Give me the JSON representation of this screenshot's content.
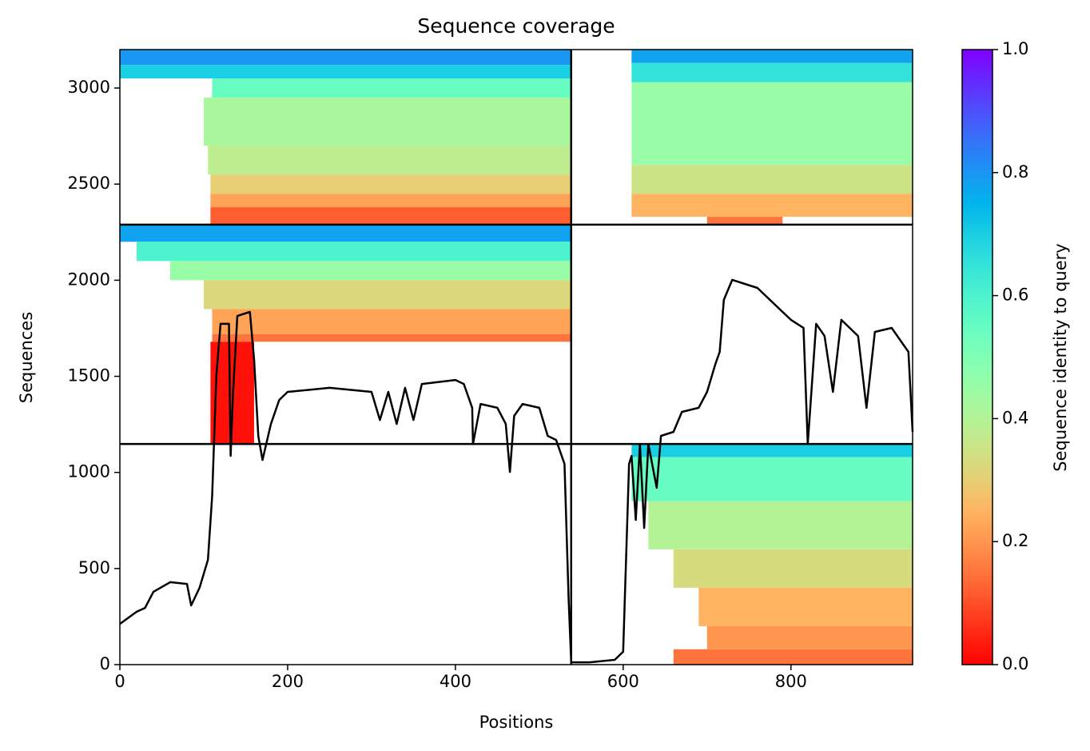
{
  "chart_data": {
    "type": "coverage",
    "title": "Sequence coverage",
    "x_label": "Positions",
    "y_label": "Sequences",
    "xlim": [
      0,
      945
    ],
    "xticks": [
      0,
      200,
      400,
      600,
      800
    ],
    "ylim": [
      0,
      3200
    ],
    "yticks": [
      0,
      500,
      1000,
      1500,
      2000,
      2500,
      3000
    ],
    "block_edges": {
      "x": [
        538
      ],
      "y": [
        1148,
        2289
      ]
    },
    "bands": [
      {
        "x0": 0,
        "x1": 538,
        "y0": 3120,
        "y1": 3200,
        "identity": 0.8
      },
      {
        "x0": 0,
        "x1": 538,
        "y0": 3050,
        "y1": 3120,
        "identity": 0.7
      },
      {
        "x0": 110,
        "x1": 538,
        "y0": 2950,
        "y1": 3050,
        "identity": 0.55
      },
      {
        "x0": 100,
        "x1": 538,
        "y0": 2700,
        "y1": 2950,
        "identity": 0.42
      },
      {
        "x0": 105,
        "x1": 538,
        "y0": 2550,
        "y1": 2700,
        "identity": 0.38
      },
      {
        "x0": 108,
        "x1": 538,
        "y0": 2450,
        "y1": 2550,
        "identity": 0.3
      },
      {
        "x0": 108,
        "x1": 538,
        "y0": 2380,
        "y1": 2450,
        "identity": 0.22
      },
      {
        "x0": 108,
        "x1": 538,
        "y0": 2289,
        "y1": 2380,
        "identity": 0.12
      },
      {
        "x0": 610,
        "x1": 945,
        "y0": 3130,
        "y1": 3200,
        "identity": 0.78
      },
      {
        "x0": 610,
        "x1": 945,
        "y0": 3030,
        "y1": 3130,
        "identity": 0.65
      },
      {
        "x0": 610,
        "x1": 945,
        "y0": 2600,
        "y1": 3030,
        "identity": 0.45
      },
      {
        "x0": 610,
        "x1": 945,
        "y0": 2450,
        "y1": 2600,
        "identity": 0.35
      },
      {
        "x0": 610,
        "x1": 945,
        "y0": 2330,
        "y1": 2450,
        "identity": 0.25
      },
      {
        "x0": 700,
        "x1": 790,
        "y0": 2289,
        "y1": 2330,
        "identity": 0.15
      },
      {
        "x0": 0,
        "x1": 538,
        "y0": 2200,
        "y1": 2289,
        "identity": 0.78
      },
      {
        "x0": 20,
        "x1": 538,
        "y0": 2100,
        "y1": 2200,
        "identity": 0.6
      },
      {
        "x0": 60,
        "x1": 538,
        "y0": 2000,
        "y1": 2100,
        "identity": 0.45
      },
      {
        "x0": 100,
        "x1": 538,
        "y0": 1850,
        "y1": 2000,
        "identity": 0.32
      },
      {
        "x0": 110,
        "x1": 538,
        "y0": 1720,
        "y1": 1850,
        "identity": 0.22
      },
      {
        "x0": 110,
        "x1": 538,
        "y0": 1680,
        "y1": 1720,
        "identity": 0.15
      },
      {
        "x0": 108,
        "x1": 160,
        "y0": 1148,
        "y1": 1680,
        "identity": 0.02
      },
      {
        "x0": 610,
        "x1": 945,
        "y0": 1080,
        "y1": 1148,
        "identity": 0.7
      },
      {
        "x0": 610,
        "x1": 945,
        "y0": 850,
        "y1": 1080,
        "identity": 0.55
      },
      {
        "x0": 630,
        "x1": 945,
        "y0": 600,
        "y1": 850,
        "identity": 0.4
      },
      {
        "x0": 660,
        "x1": 945,
        "y0": 400,
        "y1": 600,
        "identity": 0.33
      },
      {
        "x0": 690,
        "x1": 945,
        "y0": 200,
        "y1": 400,
        "identity": 0.25
      },
      {
        "x0": 700,
        "x1": 945,
        "y0": 80,
        "y1": 200,
        "identity": 0.2
      },
      {
        "x0": 660,
        "x1": 945,
        "y0": 0,
        "y1": 80,
        "identity": 0.15
      }
    ],
    "coverage": {
      "color": "#000000",
      "x": [
        0,
        20,
        30,
        40,
        60,
        80,
        85,
        95,
        105,
        110,
        115,
        120,
        130,
        132,
        135,
        140,
        155,
        160,
        165,
        170,
        180,
        190,
        200,
        250,
        300,
        310,
        320,
        330,
        340,
        350,
        360,
        400,
        410,
        420,
        421,
        430,
        450,
        460,
        465,
        470,
        480,
        500,
        510,
        520,
        530,
        535,
        538,
        560,
        590,
        600,
        607,
        610,
        615,
        620,
        625,
        630,
        640,
        645,
        660,
        670,
        690,
        700,
        710,
        715,
        720,
        730,
        760,
        790,
        800,
        815,
        820,
        830,
        840,
        850,
        860,
        880,
        890,
        900,
        920,
        940,
        945
      ],
      "values": [
        212,
        275,
        295,
        379,
        429,
        420,
        308,
        400,
        545,
        878,
        1502,
        1773,
        1773,
        1086,
        1419,
        1814,
        1835,
        1585,
        1190,
        1065,
        1252,
        1377,
        1419,
        1440,
        1419,
        1273,
        1419,
        1252,
        1440,
        1273,
        1460,
        1481,
        1460,
        1336,
        1148,
        1356,
        1336,
        1252,
        1003,
        1294,
        1356,
        1336,
        1190,
        1169,
        1044,
        337,
        12,
        12,
        25,
        67,
        1044,
        1086,
        753,
        1148,
        711,
        1148,
        920,
        1190,
        1211,
        1315,
        1336,
        1419,
        1565,
        1627,
        1898,
        2002,
        1960,
        1835,
        1794,
        1752,
        1148,
        1773,
        1710,
        1419,
        1794,
        1710,
        1336,
        1731,
        1752,
        1627,
        1211
      ]
    },
    "colorbar": {
      "label": "Sequence identity to query",
      "clim": [
        0,
        1
      ],
      "ticks": [
        {
          "value": 0,
          "label": "0.0"
        },
        0.2,
        0.4,
        0.6,
        0.8,
        {
          "value": 1,
          "label": "1.0"
        }
      ]
    }
  }
}
